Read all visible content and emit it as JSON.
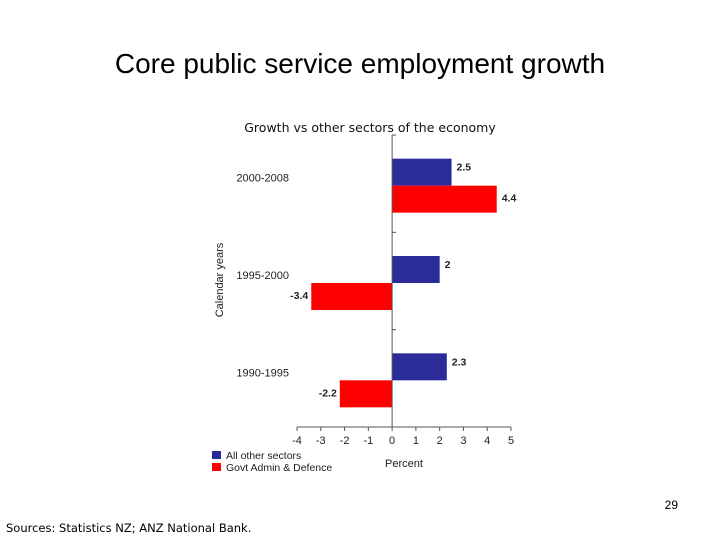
{
  "slide": {
    "title": "Core public service employment growth",
    "page_number": "29",
    "sources": "Sources: Statistics NZ; ANZ National Bank."
  },
  "chart_data": {
    "type": "bar",
    "orientation": "horizontal",
    "title": "Growth vs other sectors of the economy",
    "xlabel": "Percent",
    "ylabel": "Calendar years",
    "xlim": [
      -4,
      5
    ],
    "xticks": [
      -4,
      -3,
      -2,
      -1,
      0,
      1,
      2,
      3,
      4,
      5
    ],
    "categories": [
      "2000-2008",
      "1995-2000",
      "1990-1995"
    ],
    "series": [
      {
        "name": "All other sectors",
        "color": "#2b2b9a",
        "values": [
          2.5,
          2,
          2.3
        ],
        "labels": [
          "2.5",
          "2",
          "2.3"
        ]
      },
      {
        "name": "Govt Admin & Defence",
        "color": "#ff0000",
        "values": [
          4.4,
          -3.4,
          -2.2
        ],
        "labels": [
          "4.4",
          "-3.4",
          "-2.2"
        ]
      }
    ],
    "legend_position": "bottom-left",
    "grid": false
  }
}
